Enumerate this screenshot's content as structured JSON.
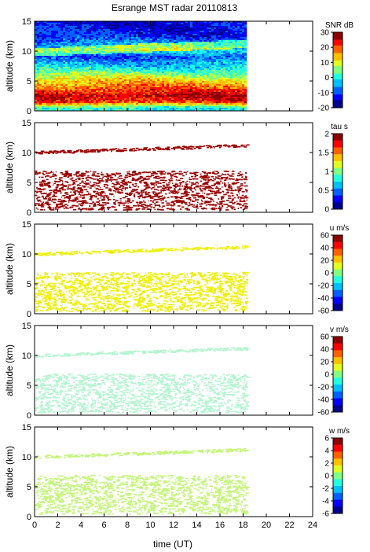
{
  "title": "Esrange MST radar 20110813",
  "xlabel": "time (UT)",
  "colors": {
    "jet": [
      "#00008f",
      "#0000ff",
      "#0060ff",
      "#00bfff",
      "#20ffdf",
      "#80ff80",
      "#dfff20",
      "#ffbf00",
      "#ff6000",
      "#ff0000",
      "#8f0000"
    ],
    "panel2_fill": "#9b0000",
    "panel3_fill": "#eef000",
    "panel4_fill": "#b4f5d0",
    "panel5_fill": "#c4f57a"
  },
  "chart_data": [
    {
      "type": "heatmap",
      "quantity": "SNR",
      "colorbar_label": "SNR dB",
      "colorbar_ticks": [
        "30",
        "20",
        "10",
        "0",
        "-10",
        "-20"
      ],
      "clim": [
        -20,
        30
      ],
      "ylabel": "altitude (km)",
      "ylim": [
        0,
        15
      ],
      "yticks": [
        "15",
        "10",
        "5",
        "0"
      ],
      "xlim": [
        0,
        24
      ],
      "data_time_range": [
        0,
        18.3
      ],
      "profile": [
        {
          "alt": 0.5,
          "value": 0
        },
        {
          "alt": 1.5,
          "value": 22
        },
        {
          "alt": 2.5,
          "value": 26
        },
        {
          "alt": 4.0,
          "value": 18
        },
        {
          "alt": 5.5,
          "value": 10
        },
        {
          "alt": 7.0,
          "value": 0
        },
        {
          "alt": 9.0,
          "value": -10
        },
        {
          "alt": 10.2,
          "value": -2
        },
        {
          "alt": 12.5,
          "value": -12
        },
        {
          "alt": 14.5,
          "value": -14
        }
      ]
    },
    {
      "type": "heatmap",
      "quantity": "tau",
      "colorbar_label": "tau s",
      "colorbar_ticks": [
        "2",
        "1.5",
        "1",
        "0.5",
        "0"
      ],
      "clim": [
        0,
        2
      ],
      "ylabel": "altitude (km)",
      "ylim": [
        0,
        15
      ],
      "yticks": [
        "15",
        "10",
        "5",
        "0"
      ],
      "xlim": [
        0,
        24
      ],
      "bands": [
        {
          "alt_start": 9.8,
          "alt_end": 11.2,
          "t_start": 0,
          "t_end": 18.3,
          "value": 2
        },
        {
          "alt_start": 0.5,
          "alt_end": 7.0,
          "t_start": 0,
          "t_end": 18.3,
          "value": 2
        }
      ]
    },
    {
      "type": "heatmap",
      "quantity": "u",
      "colorbar_label": "u m/s",
      "colorbar_ticks": [
        "60",
        "40",
        "20",
        "0",
        "-20",
        "-40",
        "-60"
      ],
      "clim": [
        -60,
        60
      ],
      "ylabel": "altitude (km)",
      "ylim": [
        0,
        15
      ],
      "yticks": [
        "15",
        "10",
        "5",
        "0"
      ],
      "xlim": [
        0,
        24
      ],
      "bands": [
        {
          "alt_start": 9.8,
          "alt_end": 11.2,
          "t_start": 0,
          "t_end": 18.3,
          "value": 20
        },
        {
          "alt_start": 0.5,
          "alt_end": 7.0,
          "t_start": 0,
          "t_end": 18.3,
          "value": 20
        }
      ]
    },
    {
      "type": "heatmap",
      "quantity": "v",
      "colorbar_label": "v m/s",
      "colorbar_ticks": [
        "60",
        "40",
        "20",
        "0",
        "-20",
        "-40",
        "-60"
      ],
      "clim": [
        -60,
        60
      ],
      "ylabel": "altitude (km)",
      "ylim": [
        0,
        15
      ],
      "yticks": [
        "15",
        "10",
        "5",
        "0"
      ],
      "xlim": [
        0,
        24
      ],
      "bands": [
        {
          "alt_start": 9.8,
          "alt_end": 11.2,
          "t_start": 0,
          "t_end": 18.3,
          "value": -5
        },
        {
          "alt_start": 0.5,
          "alt_end": 7.0,
          "t_start": 0,
          "t_end": 18.3,
          "value": -5
        }
      ]
    },
    {
      "type": "heatmap",
      "quantity": "w",
      "colorbar_label": "w m/s",
      "colorbar_ticks": [
        "6",
        "4",
        "2",
        "0",
        "-2",
        "-4",
        "-6"
      ],
      "clim": [
        -6,
        6
      ],
      "ylabel": "altitude (km)",
      "ylim": [
        0,
        15
      ],
      "yticks": [
        "15",
        "10",
        "5",
        "0"
      ],
      "xlim": [
        0,
        24
      ],
      "xticks": [
        "0",
        "2",
        "4",
        "6",
        "8",
        "10",
        "12",
        "14",
        "16",
        "18",
        "20",
        "22",
        "24"
      ],
      "bands": [
        {
          "alt_start": 9.8,
          "alt_end": 11.2,
          "t_start": 0,
          "t_end": 18.3,
          "value": 1
        },
        {
          "alt_start": 0.5,
          "alt_end": 7.0,
          "t_start": 0,
          "t_end": 18.3,
          "value": 1
        }
      ]
    }
  ]
}
